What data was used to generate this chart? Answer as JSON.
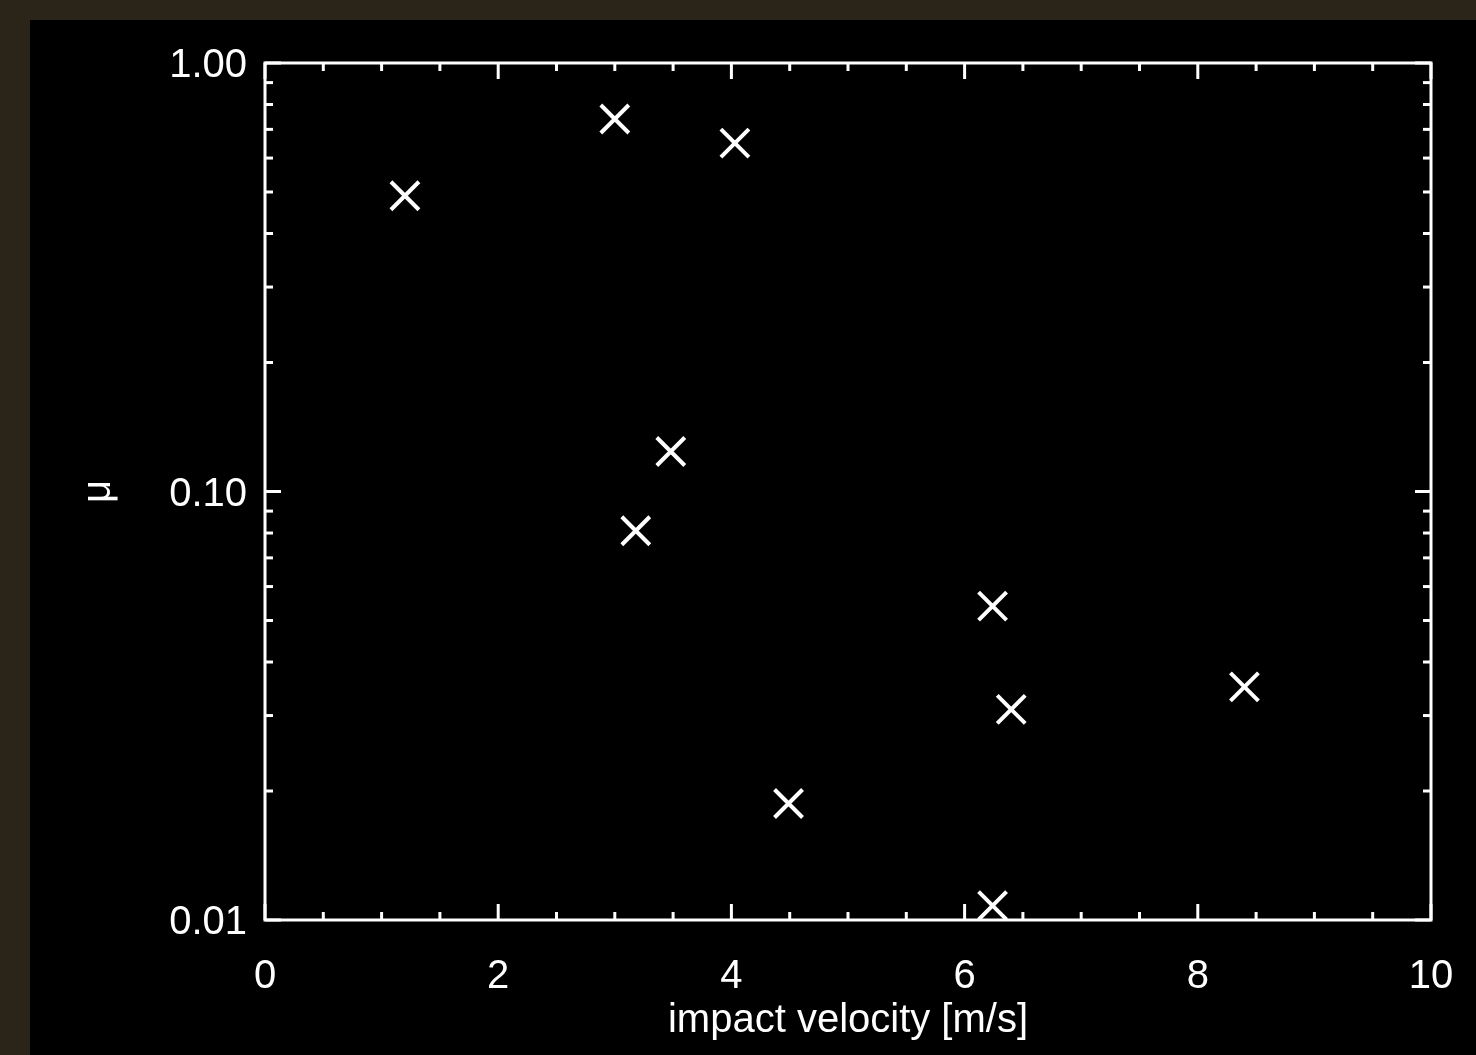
{
  "chart_data": {
    "type": "scatter",
    "xlabel": "impact velocity [m/s]",
    "ylabel": "μ",
    "log": "y",
    "marker": "cross",
    "grid": false,
    "x": [
      1.2,
      3.0,
      4.03,
      3.48,
      3.18,
      6.24,
      6.4,
      8.4,
      4.49,
      6.24
    ],
    "series": [
      {
        "color": "#ffffff",
        "values": [
          0.49,
          0.74,
          0.65,
          0.124,
          0.081,
          0.054,
          0.031,
          0.035,
          0.0187,
          0.0108
        ]
      }
    ],
    "xlim": [
      0,
      10
    ],
    "xticks": [
      0,
      {
        "value": 0.5,
        "label": null
      },
      {
        "value": 1,
        "label": null
      },
      {
        "value": 1.5,
        "label": null
      },
      2,
      {
        "value": 2.5,
        "label": null
      },
      {
        "value": 3,
        "label": null
      },
      {
        "value": 3.5,
        "label": null
      },
      4,
      {
        "value": 4.5,
        "label": null
      },
      {
        "value": 5,
        "label": null
      },
      {
        "value": 5.5,
        "label": null
      },
      6,
      {
        "value": 6.5,
        "label": null
      },
      {
        "value": 7,
        "label": null
      },
      {
        "value": 7.5,
        "label": null
      },
      8,
      {
        "value": 8.5,
        "label": null
      },
      {
        "value": 9,
        "label": null
      },
      {
        "value": 9.5,
        "label": null
      },
      10
    ],
    "ylim": [
      0.01,
      1
    ],
    "yticks": [
      {
        "value": 0.01,
        "label": "0.01"
      },
      {
        "value": 0.02,
        "label": null
      },
      {
        "value": 0.03,
        "label": null
      },
      {
        "value": 0.04,
        "label": null
      },
      {
        "value": 0.05,
        "label": null
      },
      {
        "value": 0.06,
        "label": null
      },
      {
        "value": 0.07,
        "label": null
      },
      {
        "value": 0.08,
        "label": null
      },
      {
        "value": 0.09,
        "label": null
      },
      {
        "value": 0.1,
        "label": "0.10"
      },
      {
        "value": 0.2,
        "label": null
      },
      {
        "value": 0.3,
        "label": null
      },
      {
        "value": 0.4,
        "label": null
      },
      {
        "value": 0.5,
        "label": null
      },
      {
        "value": 0.6,
        "label": null
      },
      {
        "value": 0.7,
        "label": null
      },
      {
        "value": 0.8,
        "label": null
      },
      {
        "value": 0.9,
        "label": null
      },
      {
        "value": 1,
        "label": "1.00"
      }
    ]
  }
}
